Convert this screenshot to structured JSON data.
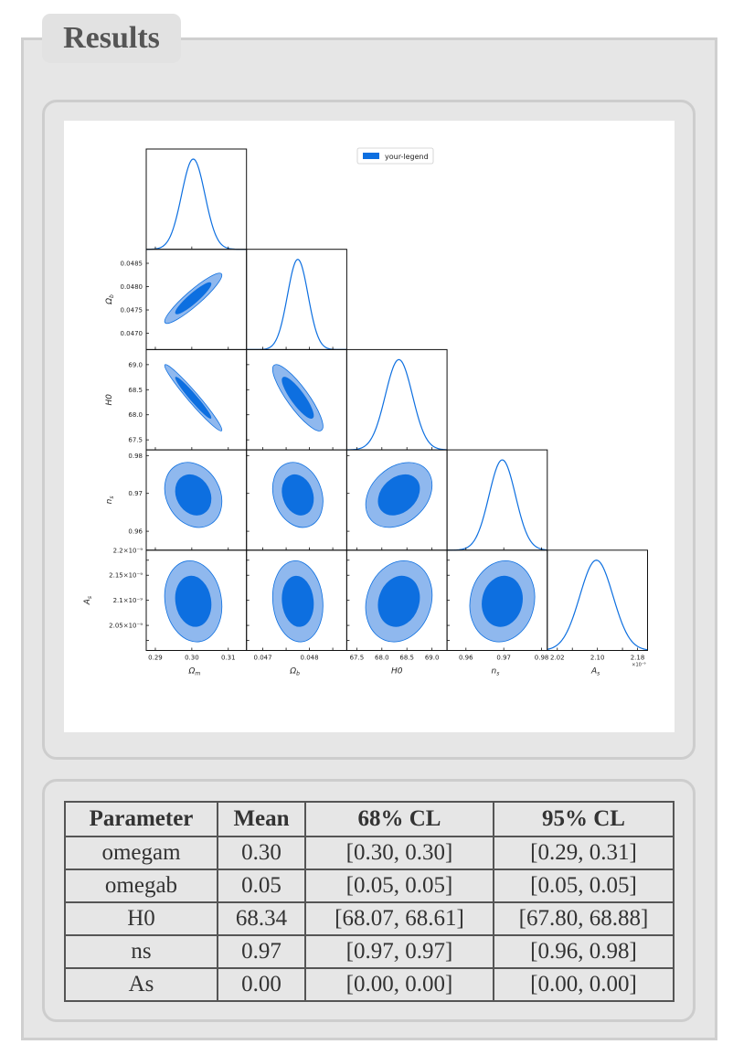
{
  "page": {
    "title": "Results"
  },
  "legend": {
    "label": "your-legend"
  },
  "table": {
    "headers": [
      "Parameter",
      "Mean",
      "68% CL",
      "95% CL"
    ],
    "rows": [
      [
        "omegam",
        "0.30",
        "[0.30, 0.30]",
        "[0.29, 0.31]"
      ],
      [
        "omegab",
        "0.05",
        "[0.05, 0.05]",
        "[0.05, 0.05]"
      ],
      [
        "H0",
        "68.34",
        "[68.07, 68.61]",
        "[67.80, 68.88]"
      ],
      [
        "ns",
        "0.97",
        "[0.97, 0.97]",
        "[0.96, 0.98]"
      ],
      [
        "As",
        "0.00",
        "[0.00, 0.00]",
        "[0.00, 0.00]"
      ]
    ]
  },
  "chart_data": {
    "type": "corner",
    "series": [
      {
        "name": "your-legend",
        "color": "#0d6fe0",
        "outer_color": "#8fb8ee"
      }
    ],
    "params": [
      {
        "name": "omegam",
        "label": "Ωm",
        "range": [
          0.2875,
          0.315
        ],
        "ticks": [
          0.29,
          0.3,
          0.31
        ],
        "tick_labels": [
          "0.29",
          "0.30",
          "0.31"
        ],
        "mean": 0.3004,
        "sigma": 0.0032
      },
      {
        "name": "omegab",
        "label": "Ωb",
        "range": [
          0.04665,
          0.0488
        ],
        "ticks": [
          0.047,
          0.0475,
          0.048,
          0.0485
        ],
        "tick_labels": [
          "0.047",
          "",
          "0.048",
          ""
        ],
        "y_tick_labels": [
          "0.0470",
          "0.0475",
          "0.0480",
          "0.0485"
        ],
        "mean": 0.04775,
        "sigma": 0.00022
      },
      {
        "name": "H0",
        "label": "H0",
        "range": [
          67.3,
          69.3
        ],
        "ticks": [
          67.5,
          68,
          68.5,
          69
        ],
        "tick_labels": [
          "67.5",
          "68.0",
          "68.5",
          "69.0"
        ],
        "mean": 68.34,
        "sigma": 0.27
      },
      {
        "name": "ns",
        "label": "ns",
        "range": [
          0.955,
          0.9815
        ],
        "ticks": [
          0.96,
          0.97,
          0.98
        ],
        "tick_labels": [
          "0.96",
          "0.97",
          "0.98"
        ],
        "mean": 0.9696,
        "sigma": 0.0035
      },
      {
        "name": "As",
        "label": "As",
        "range": [
          2e-09,
          2.2e-09
        ],
        "ticks": [
          2.02e-09,
          2.05e-09,
          2.1e-09,
          2.15e-09,
          2.18e-09,
          2.2e-09
        ],
        "tick_labels": [
          "2.02",
          "",
          "2.10",
          "",
          "2.18",
          ""
        ],
        "y_tick_labels": [
          "",
          "2.05×10⁻⁹",
          "2.1×10⁻⁹",
          "2.15×10⁻⁹",
          "",
          "2.2×10⁻⁹"
        ],
        "offset_text": "×10⁻⁹",
        "mean": 2.098e-09,
        "sigma": 3.3e-11
      }
    ],
    "correlations": {
      "omegam-omegab": 0.92,
      "omegam-H0": -0.97,
      "omegab-H0": -0.86,
      "omegam-ns": -0.2,
      "omegab-ns": -0.2,
      "H0-ns": 0.3,
      "omegam-As": -0.12,
      "omegab-As": -0.1,
      "H0-As": 0.15,
      "ns-As": 0.1
    }
  }
}
